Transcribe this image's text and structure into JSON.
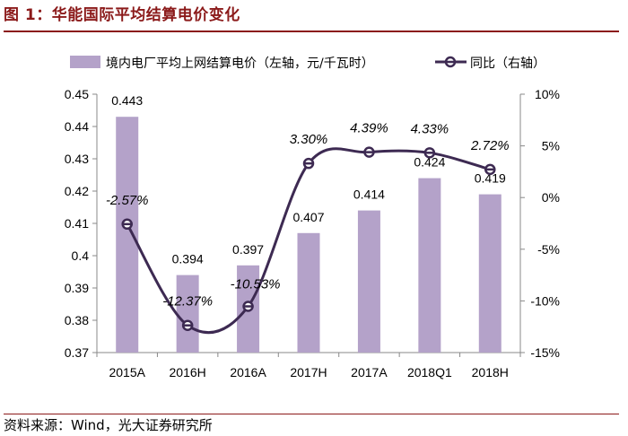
{
  "header": {
    "title": "图 1：华能国际平均结算电价变化"
  },
  "footer": {
    "source": "资料来源：Wind，光大证券研究所"
  },
  "chart_data": {
    "type": "bar",
    "categories": [
      "2015A",
      "2016H",
      "2016A",
      "2017H",
      "2017A",
      "2018Q1",
      "2018H"
    ],
    "series": [
      {
        "name": "境内电厂平均上网结算电价（左轴，元/千瓦时）",
        "type": "bar",
        "axis": "left",
        "values": [
          0.443,
          0.394,
          0.397,
          0.407,
          0.414,
          0.424,
          0.419
        ],
        "labels": [
          "0.443",
          "0.394",
          "0.397",
          "0.407",
          "0.414",
          "0.424",
          "0.419"
        ],
        "color": "#b4a2c9"
      },
      {
        "name": "同比（右轴）",
        "type": "line",
        "axis": "right",
        "values": [
          -2.57,
          -12.37,
          -10.53,
          3.3,
          4.39,
          4.33,
          2.72
        ],
        "labels": [
          "-2.57%",
          "-12.37%",
          "-10.53%",
          "3.30%",
          "4.39%",
          "4.33%",
          "2.72%"
        ],
        "color": "#3d2a52"
      }
    ],
    "ylim_left": [
      0.37,
      0.45
    ],
    "yticks_left": [
      "0.37",
      "0.38",
      "0.39",
      "0.4",
      "0.41",
      "0.42",
      "0.43",
      "0.44",
      "0.45"
    ],
    "ylim_right": [
      -15,
      10
    ],
    "yticks_right": [
      "-15%",
      "-10%",
      "-5%",
      "0%",
      "5%",
      "10%"
    ],
    "grid": false,
    "legend_position": "top"
  }
}
